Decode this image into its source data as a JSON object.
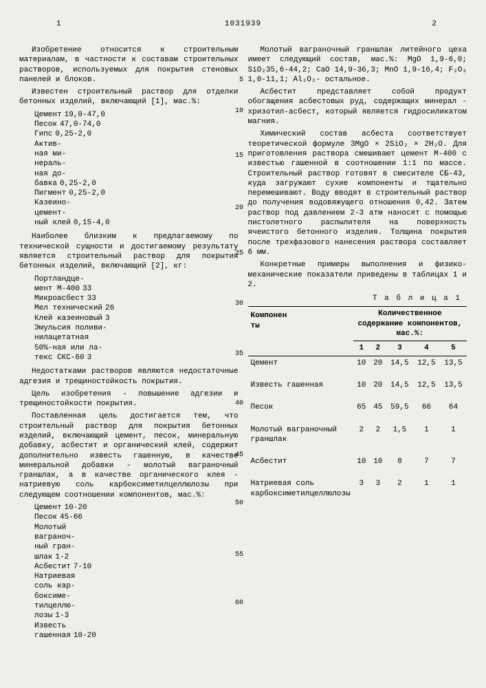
{
  "page_number_left": "1",
  "doc_number": "1031939",
  "page_number_right": "2",
  "left": {
    "p1": "Изобретение относится к строительным материалам, в частности к составам строительных растворов, используемых для покрытия стеновых панелей и блоков.",
    "p2": "Известен строительный раствор для отделки бетонных изделий, включающий [1], мас.%:",
    "kv1": [
      [
        "Цемент",
        "19,0-47,0"
      ],
      [
        "Песок",
        "47,0-74,0"
      ],
      [
        "Гипс",
        "0,25-2,0"
      ],
      [
        "Актив-",
        ""
      ],
      [
        "ная ми-",
        ""
      ],
      [
        "нераль-",
        ""
      ],
      [
        "ная до-",
        ""
      ],
      [
        "бавка",
        "0,25-2,0"
      ],
      [
        "Пигмент",
        "0,25-2,0"
      ],
      [
        "Казеино-",
        ""
      ],
      [
        "цемент-",
        ""
      ],
      [
        "ный клей",
        "0,15-4,0"
      ]
    ],
    "p3": "Наиболее близким к предлагаемому по технической сущности и достигаемому результату является строительный раствор для покрытия бетонных изделий, включающий [2], кг:",
    "kv2": [
      [
        "Портландце-",
        ""
      ],
      [
        "мент М-400",
        "33"
      ],
      [
        "Микроасбест",
        "33"
      ],
      [
        "Мел технический",
        "26"
      ],
      [
        "Клей казеиновый",
        "3"
      ],
      [
        "Эмульсия поливи-",
        ""
      ],
      [
        "нилацетатная",
        ""
      ],
      [
        "50%-ная или ла-",
        ""
      ],
      [
        "текс СКС-60",
        "3"
      ]
    ],
    "p4": "Недостатками растворов являются недостаточные адгезия и трещиностойкость покрытия.",
    "p5": "Цель изобретения - повышение адгезии и трещиностойкости покрытия.",
    "p6": "Поставленная цель достигается тем, что строительный раствор для покрытия бетонных изделий, включающий цемент, песок, минеральную добавку, асбестит и органический клей, содержит дополнительно известь гашенную, в качестве минеральной добавки - молотый ваграночный граншлак, а в качестве органического клея - натриевую соль карбоксиметилцеллюлозы при следующем соотношении компонентов, мас.%:",
    "kv3": [
      [
        "Цемент",
        "10-20"
      ],
      [
        "Песок",
        "45-66"
      ],
      [
        "Молотый",
        ""
      ],
      [
        "ваграноч-",
        ""
      ],
      [
        "ный гран-",
        ""
      ],
      [
        "шлак",
        "1-2"
      ],
      [
        "Асбестит",
        "7-10"
      ],
      [
        "Натриевая",
        ""
      ],
      [
        "соль кар-",
        ""
      ],
      [
        "боксиме-",
        ""
      ],
      [
        "тилцеллю-",
        ""
      ],
      [
        "лозы",
        "1-3"
      ],
      [
        "Известь",
        ""
      ],
      [
        "гашенная",
        "10-20"
      ]
    ]
  },
  "right": {
    "p1": "Молотый ваграночный граншлак литейного цеха имеет следующий состав, мас.%: MgO 1,9-6,0; SiO₂35,6-44,2; CaO 14,9-36,3; MnO 1,9-16,4; F₂O₃ 1,0-11,1; Al₂O₃- остальное.",
    "p2": "Асбестит представляет собой продукт обогащения асбестовых руд, содержащих минерал - хризотил-асбест, который является гидросиликатом магния.",
    "p3": "Химический состав асбеста соответствует теоретической формуле 3MgO × 2SiO₂ × 2H₂O. Для приготовления раствора смешивают цемент М-400 с известью гашенной в соотношении 1:1 по массе. Строительный раствор готовят в смесителе СБ-43, куда загружают сухие компоненты и тщательно перемешивают. Воду вводят в строительный раствор до получения водовяжущего отношения 0,42. Затем раствор под давлением 2-3 атм наносят с помощью пистолетного распылителя на поверхность ячеистого бетонного изделия. Толщина покрытия после трехфазового нанесения раствора составляет 6 мм.",
    "p4": "Конкретные примеры выполнения и физико-механические показатели приведены в таблицах 1 и 2.",
    "tabletitle": "Т а б л и ц а  1",
    "table": {
      "header1": "Компонен\nты",
      "header2": "Количественное содержание компонентов, мас.%:",
      "cols": [
        "1",
        "2",
        "3",
        "4",
        "5"
      ],
      "rows": [
        [
          "Цемент",
          "10",
          "20",
          "14,5",
          "12,5",
          "13,5"
        ],
        [
          "Известь гашенная",
          "10",
          "20",
          "14,5",
          "12,5",
          "13,5"
        ],
        [
          "Песок",
          "65",
          "45",
          "59,5",
          "66",
          "64"
        ],
        [
          "Молотый ваграночный граншлак",
          "2",
          "2",
          "1,5",
          "1",
          "1"
        ],
        [
          "Асбестит",
          "10",
          "10",
          "8",
          "7",
          "7"
        ],
        [
          "Натриевая соль карбоксиметилцеллюлозы",
          "3",
          "3",
          "2",
          "1",
          "1"
        ]
      ]
    }
  },
  "margin_nums": [
    "5",
    "10",
    "15",
    "20",
    "25",
    "30",
    "35",
    "40",
    "45",
    "50",
    "55",
    "60"
  ]
}
